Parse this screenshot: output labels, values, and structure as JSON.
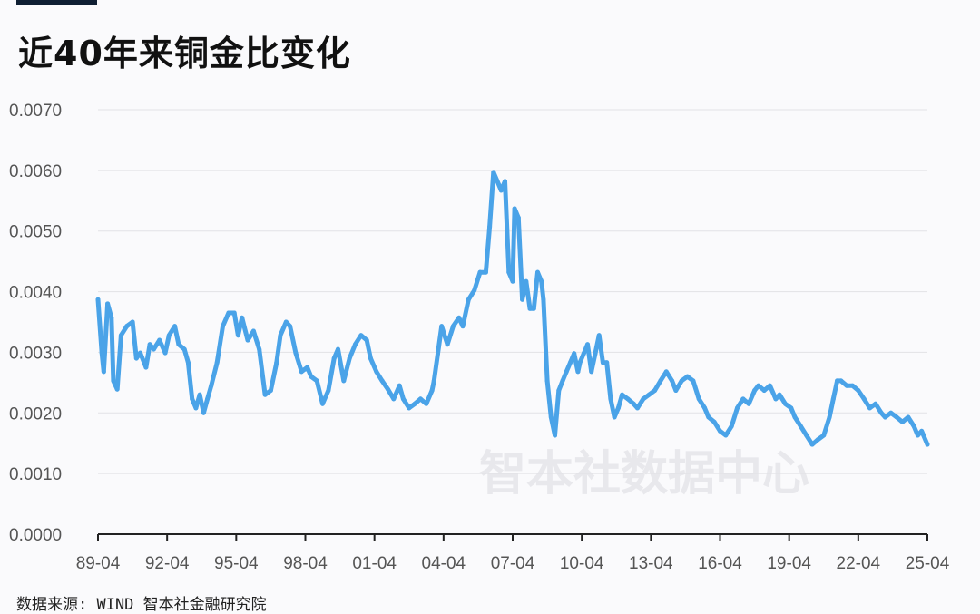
{
  "title": "近40年来铜金比变化",
  "source": "数据来源: WIND 智本社金融研究院",
  "watermark": "智本社数据中心",
  "colors": {
    "line": "#4aa3e8",
    "grid": "#e2e2e6",
    "axis": "#222222",
    "topbar": "#0f1f33"
  },
  "chart_data": {
    "type": "line",
    "title": "近40年来铜金比变化",
    "xlabel": "",
    "ylabel": "",
    "ylim": [
      0,
      0.007
    ],
    "xlim": [
      "1989-04",
      "2025-04"
    ],
    "grid": "horizontal",
    "y_ticks": [
      "0.0000",
      "0.0010",
      "0.0020",
      "0.0030",
      "0.0040",
      "0.0050",
      "0.0060",
      "0.0070"
    ],
    "x_ticks": [
      "89-04",
      "92-04",
      "95-04",
      "98-04",
      "01-04",
      "04-04",
      "07-04",
      "10-04",
      "13-04",
      "16-04",
      "19-04",
      "22-04",
      "25-04"
    ],
    "series": [
      {
        "x": [
          "1989-04",
          "1989-06",
          "1989-07",
          "1989-09",
          "1989-11",
          "1989-12",
          "1990-02",
          "1990-04",
          "1990-07",
          "1990-10",
          "1990-12",
          "1991-02",
          "1991-05",
          "1991-07",
          "1991-09",
          "1991-12",
          "1992-03",
          "1992-05",
          "1992-08",
          "1992-10",
          "1993-01",
          "1993-03",
          "1993-05",
          "1993-07",
          "1993-09",
          "1993-11",
          "1994-01",
          "1994-03",
          "1994-06",
          "1994-09",
          "1994-12",
          "1995-03",
          "1995-05",
          "1995-07",
          "1995-10",
          "1996-01",
          "1996-04",
          "1996-07",
          "1996-10",
          "1997-01",
          "1997-03",
          "1997-06",
          "1997-08",
          "1997-11",
          "1998-02",
          "1998-05",
          "1998-07",
          "1998-10",
          "1999-01",
          "1999-04",
          "1999-07",
          "1999-09",
          "1999-12",
          "2000-03",
          "2000-06",
          "2000-09",
          "2000-12",
          "2001-02",
          "2001-05",
          "2001-08",
          "2001-11",
          "2002-02",
          "2002-05",
          "2002-07",
          "2002-10",
          "2003-01",
          "2003-04",
          "2003-07",
          "2003-10",
          "2003-11",
          "2004-01",
          "2004-03",
          "2004-06",
          "2004-09",
          "2004-12",
          "2005-02",
          "2005-05",
          "2005-08",
          "2005-11",
          "2006-02",
          "2006-04",
          "2006-06",
          "2006-08",
          "2006-10",
          "2006-12",
          "2007-02",
          "2007-04",
          "2007-05",
          "2007-07",
          "2007-09",
          "2007-11",
          "2008-01",
          "2008-03",
          "2008-05",
          "2008-07",
          "2008-08",
          "2008-10",
          "2008-12",
          "2009-02",
          "2009-04",
          "2009-06",
          "2009-08",
          "2009-10",
          "2009-12",
          "2010-02",
          "2010-03",
          "2010-05",
          "2010-07",
          "2010-09",
          "2010-11",
          "2011-01",
          "2011-03",
          "2011-05",
          "2011-07",
          "2011-09",
          "2011-11",
          "2012-01",
          "2012-04",
          "2012-07",
          "2012-09",
          "2012-12",
          "2013-03",
          "2013-06",
          "2013-09",
          "2013-12",
          "2014-03",
          "2014-05",
          "2014-08",
          "2014-11",
          "2015-02",
          "2015-05",
          "2015-08",
          "2015-10",
          "2016-01",
          "2016-04",
          "2016-07",
          "2016-10",
          "2017-01",
          "2017-04",
          "2017-07",
          "2017-10",
          "2017-12",
          "2018-03",
          "2018-06",
          "2018-09",
          "2018-11",
          "2019-02",
          "2019-05",
          "2019-07",
          "2019-10",
          "2020-01",
          "2020-04",
          "2020-07",
          "2020-10",
          "2021-01",
          "2021-03",
          "2021-05",
          "2021-07",
          "2021-10",
          "2022-01",
          "2022-04",
          "2022-07",
          "2022-10",
          "2023-01",
          "2023-04",
          "2023-06",
          "2023-09",
          "2023-12",
          "2024-03",
          "2024-06",
          "2024-09",
          "2024-11",
          "2025-01",
          "2025-04"
        ],
        "values": [
          0.00387,
          0.00299,
          0.00268,
          0.0038,
          0.00357,
          0.00253,
          0.00239,
          0.00328,
          0.00343,
          0.0035,
          0.0029,
          0.00299,
          0.00275,
          0.00313,
          0.00305,
          0.0032,
          0.00299,
          0.00328,
          0.00343,
          0.00313,
          0.00305,
          0.00283,
          0.00223,
          0.00208,
          0.0023,
          0.002,
          0.00223,
          0.00245,
          0.00283,
          0.00343,
          0.00365,
          0.00365,
          0.00328,
          0.00357,
          0.0032,
          0.00335,
          0.00305,
          0.0023,
          0.00237,
          0.00283,
          0.00328,
          0.0035,
          0.00343,
          0.00299,
          0.00268,
          0.00275,
          0.0026,
          0.00253,
          0.00215,
          0.00237,
          0.0029,
          0.00305,
          0.00253,
          0.0029,
          0.00313,
          0.00328,
          0.0032,
          0.0029,
          0.00268,
          0.00253,
          0.00239,
          0.00223,
          0.00245,
          0.00223,
          0.00208,
          0.00215,
          0.00223,
          0.00215,
          0.00237,
          0.00253,
          0.00298,
          0.00343,
          0.00313,
          0.00343,
          0.00357,
          0.00343,
          0.00387,
          0.00402,
          0.00432,
          0.00432,
          0.00507,
          0.00597,
          0.00582,
          0.00567,
          0.00582,
          0.00432,
          0.00417,
          0.00537,
          0.00522,
          0.00387,
          0.00417,
          0.00372,
          0.00372,
          0.00432,
          0.00417,
          0.00387,
          0.00253,
          0.00193,
          0.00163,
          0.00237,
          0.00253,
          0.00268,
          0.00283,
          0.00298,
          0.00268,
          0.00283,
          0.00298,
          0.00313,
          0.00268,
          0.00298,
          0.00328,
          0.00283,
          0.00283,
          0.00223,
          0.00193,
          0.00208,
          0.0023,
          0.00223,
          0.00215,
          0.00208,
          0.00223,
          0.0023,
          0.00237,
          0.00253,
          0.00268,
          0.00253,
          0.00237,
          0.00253,
          0.0026,
          0.00253,
          0.00223,
          0.00208,
          0.00193,
          0.00185,
          0.0017,
          0.00163,
          0.00178,
          0.00208,
          0.00223,
          0.00215,
          0.00237,
          0.00245,
          0.00237,
          0.00245,
          0.00223,
          0.0023,
          0.00215,
          0.00208,
          0.00193,
          0.00178,
          0.00163,
          0.00148,
          0.00156,
          0.00163,
          0.00193,
          0.00223,
          0.00253,
          0.00253,
          0.00245,
          0.00245,
          0.00237,
          0.00223,
          0.00208,
          0.00215,
          0.002,
          0.00193,
          0.002,
          0.00193,
          0.00185,
          0.00193,
          0.00178,
          0.00163,
          0.0017,
          0.00148
        ]
      }
    ]
  }
}
